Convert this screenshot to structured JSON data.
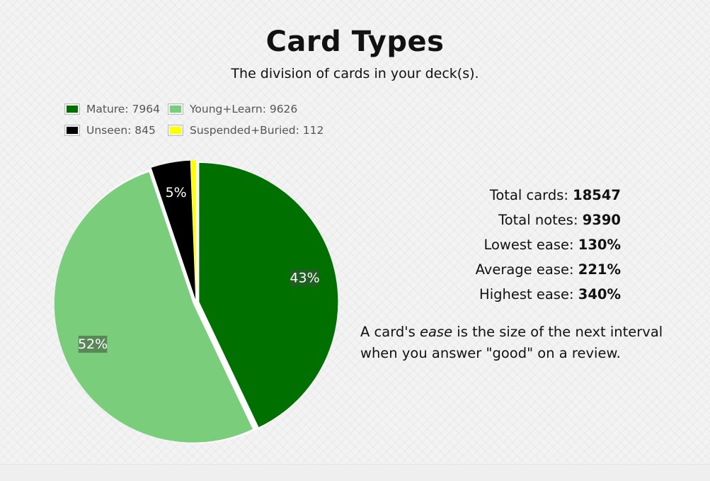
{
  "header": {
    "title": "Card Types",
    "subtitle": "The division of cards in your deck(s)."
  },
  "chart_data": {
    "type": "pie",
    "series": [
      {
        "name": "Mature",
        "value": 7964,
        "color": "#007000",
        "label": "43%"
      },
      {
        "name": "Young+Learn",
        "value": 9626,
        "color": "#7acd7a",
        "label": "52%"
      },
      {
        "name": "Unseen",
        "value": 845,
        "color": "#000000",
        "label": "5%"
      },
      {
        "name": "Suspended+Buried",
        "value": 112,
        "color": "#ffff00",
        "label": ""
      }
    ]
  },
  "legend": [
    {
      "text": "Mature: 7964",
      "color": "#007000"
    },
    {
      "text": "Young+Learn: 9626",
      "color": "#7acd7a"
    },
    {
      "text": "Unseen: 845",
      "color": "#000000"
    },
    {
      "text": "Suspended+Buried: 112",
      "color": "#ffff00"
    }
  ],
  "stats": [
    {
      "label": "Total cards: ",
      "value": "18547"
    },
    {
      "label": "Total notes: ",
      "value": "9390"
    },
    {
      "label": "Lowest ease: ",
      "value": "130%"
    },
    {
      "label": "Average ease: ",
      "value": "221%"
    },
    {
      "label": "Highest ease: ",
      "value": "340%"
    }
  ],
  "ease_note": {
    "before": "A card's ",
    "emphasis": "ease",
    "after": " is the size of the next interval when you answer \"good\" on a review."
  }
}
